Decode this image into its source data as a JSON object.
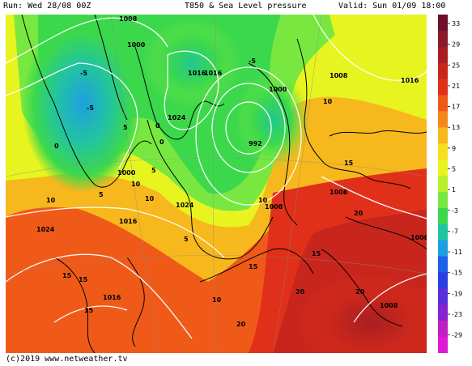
{
  "header": {
    "run": "Run: Wed 28/08 00Z",
    "title": "T850 & Sea Level pressure",
    "valid": "Valid: Sun 01/09 18:00"
  },
  "footer": {
    "credit": "(c)2019  www.netweather.tv"
  },
  "map": {
    "isobar_labels": [
      "1008",
      "1000",
      "1016",
      "1024",
      "992",
      "1000",
      "1008",
      "1016",
      "1024",
      "1016",
      "1016",
      "1024",
      "1008",
      "1016",
      "1008",
      "1000",
      "1008",
      "1008"
    ],
    "temperature_labels": [
      "-5",
      "-5",
      "0",
      "5",
      "5",
      "10",
      "10",
      "10",
      "15",
      "15",
      "15",
      "15",
      "15",
      "20",
      "20",
      "20",
      "20",
      "15",
      "10",
      "10",
      "10",
      "5",
      "0",
      "0",
      "-5",
      "5"
    ]
  },
  "legend": {
    "ticks": [
      "33",
      "29",
      "25",
      "21",
      "17",
      "13",
      "9",
      "5",
      "1",
      "-3",
      "-7",
      "-11",
      "-15",
      "-19",
      "-23",
      "-29"
    ],
    "colors": [
      "#6e0f2e",
      "#8b1a2a",
      "#a81f22",
      "#c8261d",
      "#e0301a",
      "#f05a18",
      "#f5881c",
      "#f7b81d",
      "#f5df1f",
      "#e8f420",
      "#b8f02a",
      "#78e840",
      "#3cd84c",
      "#22c4a0",
      "#1ea0e0",
      "#1e60e8",
      "#2840e0",
      "#5a2ed8",
      "#8a22d0",
      "#c020c0",
      "#e018d8"
    ]
  }
}
